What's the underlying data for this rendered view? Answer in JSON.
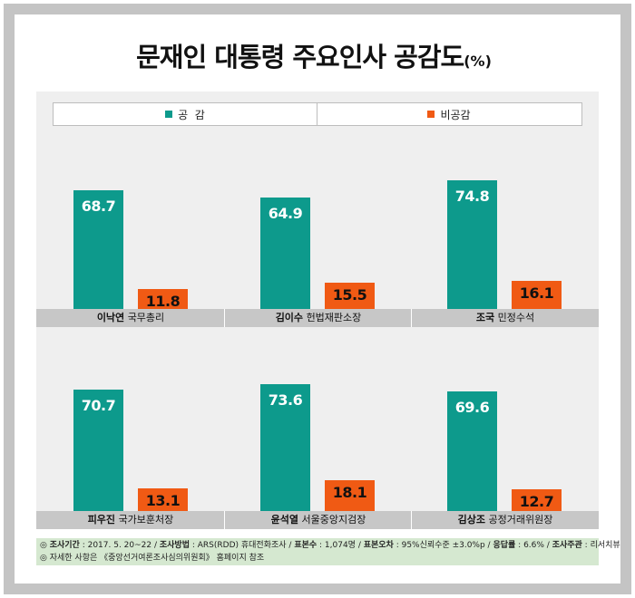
{
  "title": "문재인 대통령 주요인사 공감도",
  "title_unit": "(%)",
  "legend": [
    {
      "label": "공  감",
      "color": "#0d9a8c"
    },
    {
      "label": "비공감",
      "color": "#f05a14"
    }
  ],
  "chart_data": {
    "type": "bar",
    "title": "문재인 대통령 주요인사 공감도",
    "unit": "%",
    "categories": [
      {
        "name": "이낙연",
        "role": "국무총리"
      },
      {
        "name": "김이수",
        "role": "헌법재판소장"
      },
      {
        "name": "조국",
        "role": "민정수석"
      },
      {
        "name": "피우진",
        "role": "국가보훈처장"
      },
      {
        "name": "윤석열",
        "role": "서울중앙지검장"
      },
      {
        "name": "김상조",
        "role": "공정거래위원장"
      }
    ],
    "series": [
      {
        "name": "공  감",
        "color": "#0d9a8c",
        "values": [
          68.7,
          64.9,
          74.8,
          70.7,
          73.6,
          69.6
        ]
      },
      {
        "name": "비공감",
        "color": "#f05a14",
        "values": [
          11.8,
          15.5,
          16.1,
          13.1,
          18.1,
          12.7
        ]
      }
    ],
    "grid": false,
    "legend_position": "top"
  },
  "footer": {
    "line1_segments": [
      {
        "text": "◎ ",
        "bold": false
      },
      {
        "text": "조사기간",
        "bold": true
      },
      {
        "text": " : 2017. 5. 20~22 / ",
        "bold": false
      },
      {
        "text": "조사방법",
        "bold": true
      },
      {
        "text": " : ARS(RDD) 휴대전화조사 / ",
        "bold": false
      },
      {
        "text": "표본수",
        "bold": true
      },
      {
        "text": " : 1,074명 / ",
        "bold": false
      },
      {
        "text": "표본오차",
        "bold": true
      },
      {
        "text": " : 95%신뢰수준 ±3.0%p / ",
        "bold": false
      },
      {
        "text": "응답률",
        "bold": true
      },
      {
        "text": " : 6.6% / ",
        "bold": false
      },
      {
        "text": "조사주관",
        "bold": true
      },
      {
        "text": " : 리서치뷰",
        "bold": false
      }
    ],
    "line2": "◎ 자세한 사항은 《중앙선거여론조사심의위원회》 홈페이지 참조"
  }
}
